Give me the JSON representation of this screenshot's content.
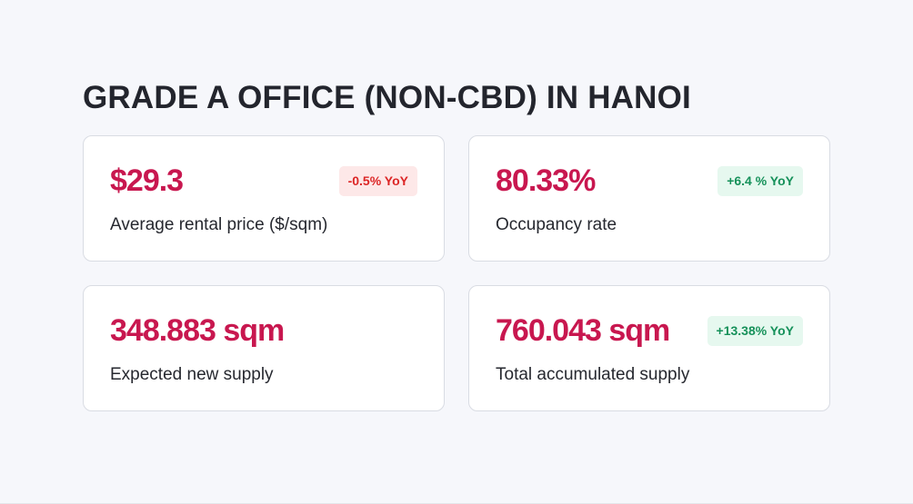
{
  "title": "GRADE A OFFICE (NON-CBD) IN HANOI",
  "colors": {
    "value": "#c8174f",
    "negative": "#dc2626",
    "positive": "#16915a"
  },
  "cards": [
    {
      "value": "$29.3",
      "label": "Average rental price ($/sqm)",
      "badge": "-0.5% YoY",
      "trend": "negative"
    },
    {
      "value": "80.33%",
      "label": "Occupancy rate",
      "badge": "+6.4 % YoY",
      "trend": "positive"
    },
    {
      "value": "348.883 sqm",
      "label": "Expected new supply"
    },
    {
      "value": "760.043 sqm",
      "label": "Total accumulated supply",
      "badge": "+13.38% YoY",
      "trend": "positive"
    }
  ]
}
